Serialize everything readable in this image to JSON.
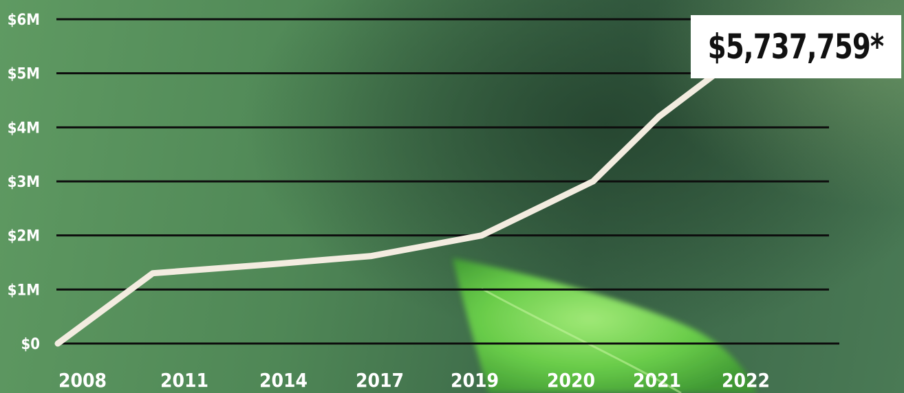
{
  "chart_data": {
    "type": "line",
    "x": [
      "2008",
      "2011",
      "2014",
      "2017",
      "2019",
      "2020",
      "2021",
      "2022"
    ],
    "series": [
      {
        "values": [
          0,
          1300000,
          1470000,
          1620000,
          2000000,
          3000000,
          4200000,
          5737759
        ]
      }
    ],
    "yticks": [
      {
        "value": 0,
        "label": "$0"
      },
      {
        "value": 1000000,
        "label": "$1M"
      },
      {
        "value": 2000000,
        "label": "$2M"
      },
      {
        "value": 3000000,
        "label": "$3M"
      },
      {
        "value": 4000000,
        "label": "$4M"
      },
      {
        "value": 5000000,
        "label": "$5M"
      },
      {
        "value": 6000000,
        "label": "$6M"
      }
    ],
    "ylim": [
      0,
      6000000
    ],
    "grid": true,
    "annotation": "$5,737,759*"
  },
  "colors": {
    "line": "#f3ece0",
    "grid": "#0d0d0d",
    "tick_text": "#ffffff",
    "callout_bg": "#ffffff",
    "callout_text": "#111111"
  }
}
